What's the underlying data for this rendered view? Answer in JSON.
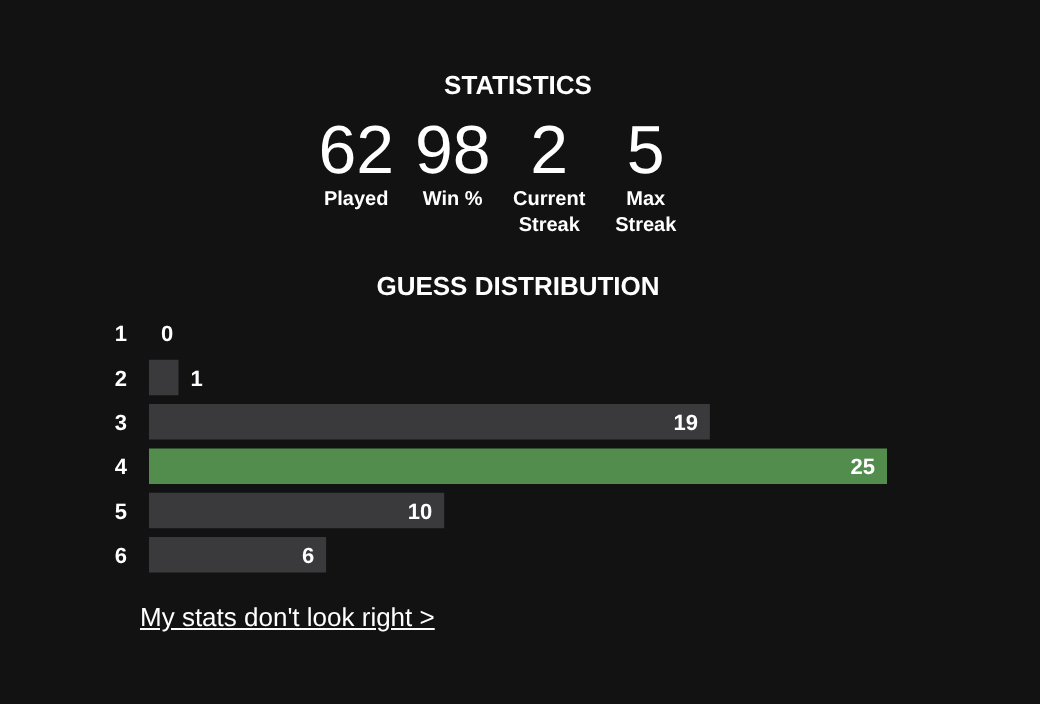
{
  "chart_data": [
    {
      "type": "other",
      "title": "STATISTICS",
      "categories": [
        "Played",
        "Win %",
        "Current\nStreak",
        "Max\nStreak"
      ],
      "values": [
        62,
        98,
        2,
        5
      ],
      "value_labels": [
        "62",
        "98",
        "2",
        "5"
      ]
    },
    {
      "type": "bar",
      "orientation": "horizontal",
      "title": "GUESS DISTRIBUTION",
      "categories": [
        "1",
        "2",
        "3",
        "4",
        "5",
        "6"
      ],
      "values": [
        0,
        1,
        19,
        25,
        10,
        6
      ],
      "colors": [
        "#3a3a3c",
        "#3a3a3c",
        "#3a3a3c",
        "#538d4e",
        "#3a3a3c",
        "#3a3a3c"
      ],
      "data_labels": true,
      "grid": false,
      "annotations": [
        "My stats don't look right >"
      ]
    }
  ]
}
